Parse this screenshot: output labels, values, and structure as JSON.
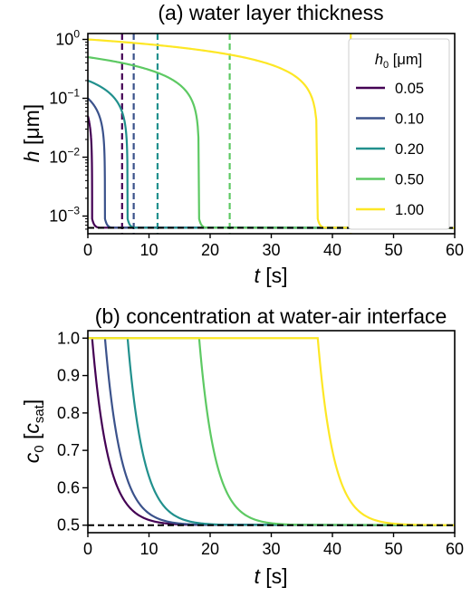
{
  "chart_data": [
    {
      "type": "line",
      "title": "(a) water layer thickness",
      "ylabel_symbol": "h",
      "ylabel_unit": "[μm]",
      "xlabel_symbol": "t",
      "xlabel_unit": "[s]",
      "xlim": [
        0,
        60
      ],
      "ylim_log10": [
        -3.3,
        0.1
      ],
      "yscale": "log",
      "xticks": [
        0,
        10,
        20,
        30,
        40,
        50,
        60
      ],
      "yticks": [
        {
          "label_base": "10",
          "label_exp": "0",
          "value": 1
        },
        {
          "label_base": "10",
          "label_exp": "−1",
          "value": 0.1
        },
        {
          "label_base": "10",
          "label_exp": "−2",
          "value": 0.01
        },
        {
          "label_base": "10",
          "label_exp": "−3",
          "value": 0.001
        }
      ],
      "legend": {
        "title_symbol": "h",
        "title_sub": "0",
        "title_unit": "[μm]",
        "placement": "right",
        "entries": [
          "0.05",
          "0.10",
          "0.20",
          "0.50",
          "1.00"
        ]
      },
      "equilibrium_h": 0.00063,
      "series": [
        {
          "name": "0.05",
          "color": "#440154",
          "h0": 0.05,
          "t_drop": 0.7,
          "t_dashed": 5.6
        },
        {
          "name": "0.10",
          "color": "#3b528b",
          "h0": 0.1,
          "t_drop": 2.8,
          "t_dashed": 7.5
        },
        {
          "name": "0.20",
          "color": "#21908d",
          "h0": 0.2,
          "t_drop": 6.5,
          "t_dashed": 11.4
        },
        {
          "name": "0.50",
          "color": "#5dc963",
          "h0": 0.5,
          "t_drop": 18.2,
          "t_dashed": 23.2
        },
        {
          "name": "1.00",
          "color": "#fde725",
          "h0": 1.0,
          "t_drop": 37.6,
          "t_dashed": 43.0
        }
      ]
    },
    {
      "type": "line",
      "title": "(b) concentration at water-air interface",
      "ylabel_symbol": "c",
      "ylabel_sub": "0",
      "ylabel_inner_symbol": "c",
      "ylabel_inner_sub": "sat",
      "xlabel_symbol": "t",
      "xlabel_unit": "[s]",
      "xlim": [
        0,
        60
      ],
      "ylim": [
        0.48,
        1.02
      ],
      "xticks": [
        0,
        10,
        20,
        30,
        40,
        50,
        60
      ],
      "yticks": [
        1.0,
        0.9,
        0.8,
        0.7,
        0.6,
        0.5
      ],
      "equilibrium_c": 0.5,
      "series": [
        {
          "name": "0.05",
          "color": "#440154",
          "t_start": 0.7
        },
        {
          "name": "0.10",
          "color": "#3b528b",
          "t_start": 2.8
        },
        {
          "name": "0.20",
          "color": "#21908d",
          "t_start": 6.5
        },
        {
          "name": "0.50",
          "color": "#5dc963",
          "t_start": 18.2
        },
        {
          "name": "1.00",
          "color": "#fde725",
          "t_start": 37.6
        }
      ]
    }
  ]
}
